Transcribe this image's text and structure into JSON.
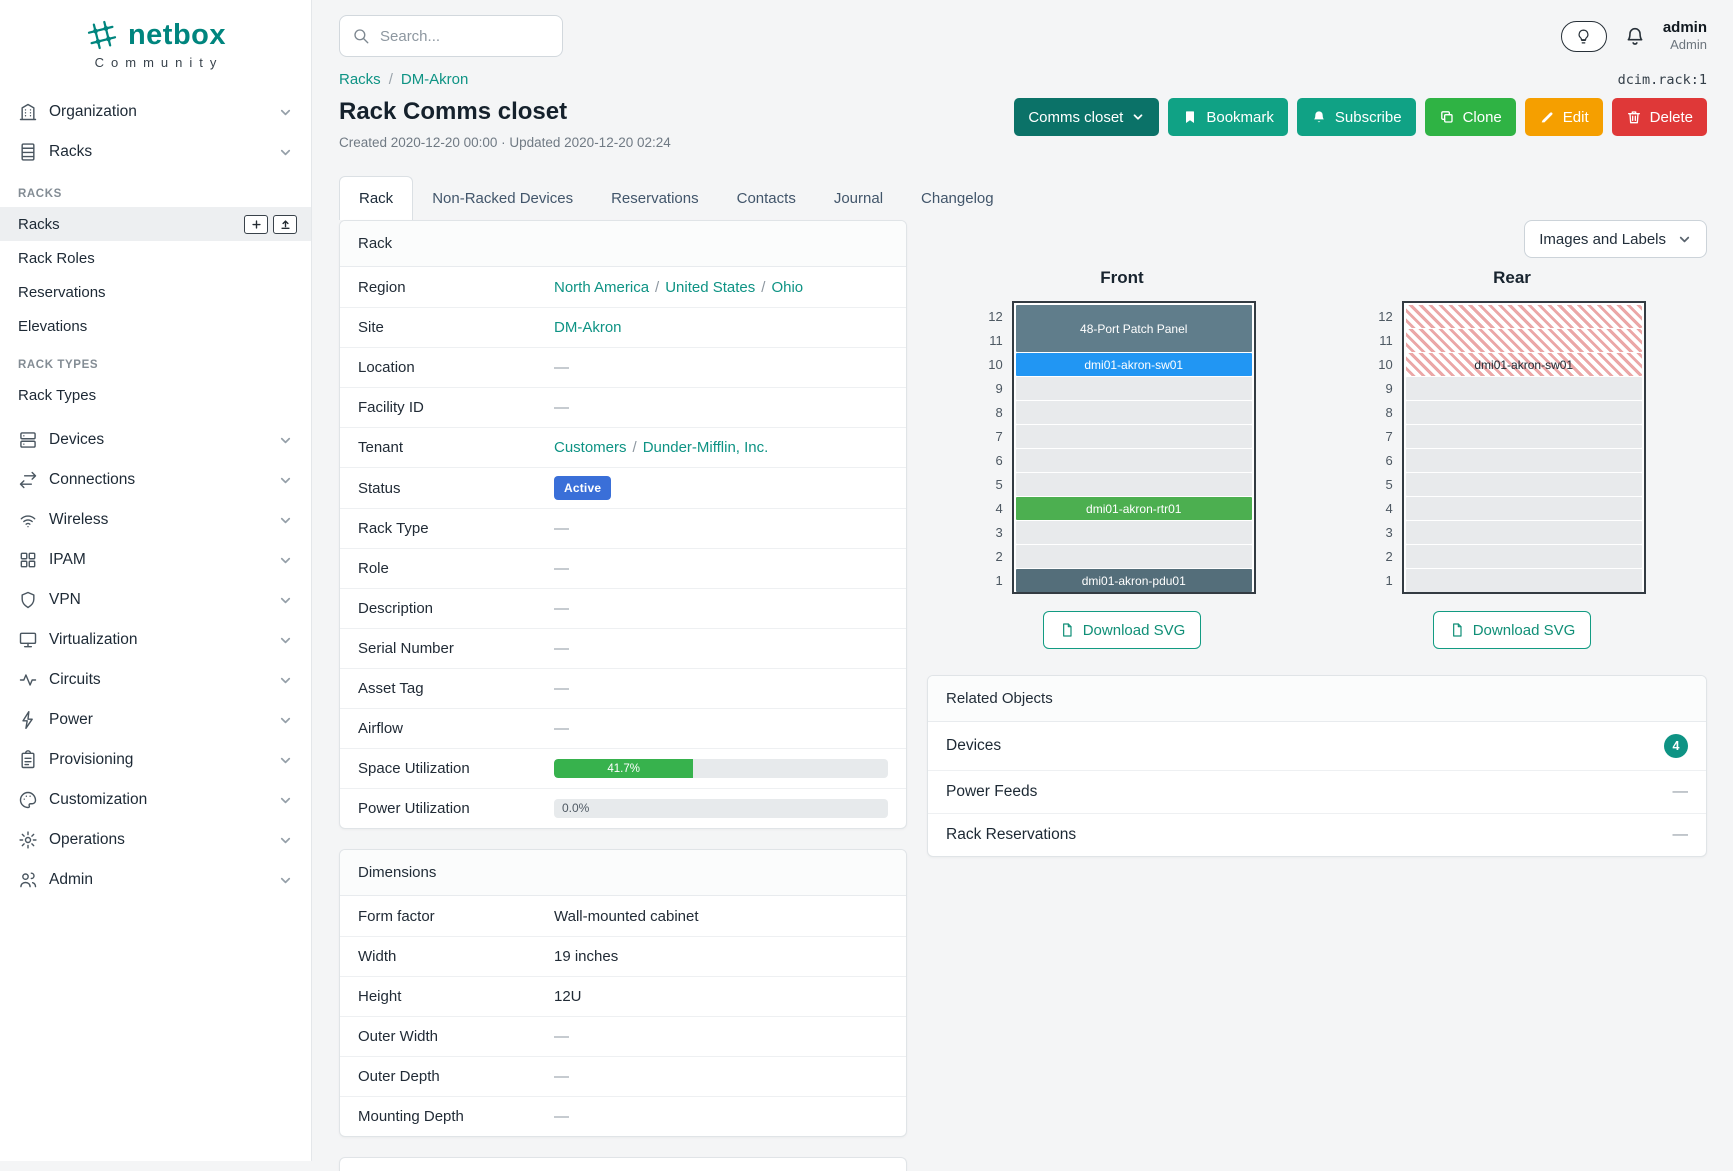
{
  "ui": {
    "sep": "/"
  },
  "topbar": {
    "search_placeholder": "Search...",
    "username": "admin",
    "role": "Admin"
  },
  "sidebar": {
    "logo": {
      "text": "netbox",
      "subtext": "Community"
    },
    "primary_top": [
      {
        "label": "Organization",
        "icon": "building-icon"
      },
      {
        "label": "Racks",
        "icon": "rack-icon"
      }
    ],
    "sections": [
      {
        "header": "RACKS",
        "items": [
          {
            "label": "Racks",
            "active": true
          },
          {
            "label": "Rack Roles"
          },
          {
            "label": "Reservations"
          },
          {
            "label": "Elevations"
          }
        ]
      },
      {
        "header": "RACK TYPES",
        "items": [
          {
            "label": "Rack Types"
          }
        ]
      }
    ],
    "primary_bottom": [
      {
        "label": "Devices",
        "icon": "devices-icon"
      },
      {
        "label": "Connections",
        "icon": "connections-icon"
      },
      {
        "label": "Wireless",
        "icon": "wifi-icon"
      },
      {
        "label": "IPAM",
        "icon": "grid-icon"
      },
      {
        "label": "VPN",
        "icon": "shield-icon"
      },
      {
        "label": "Virtualization",
        "icon": "monitor-icon"
      },
      {
        "label": "Circuits",
        "icon": "pulse-icon"
      },
      {
        "label": "Power",
        "icon": "bolt-icon"
      },
      {
        "label": "Provisioning",
        "icon": "clipboard-icon"
      },
      {
        "label": "Customization",
        "icon": "palette-icon"
      },
      {
        "label": "Operations",
        "icon": "gear-icon"
      },
      {
        "label": "Admin",
        "icon": "users-icon"
      }
    ]
  },
  "header": {
    "breadcrumb": [
      "Racks",
      "DM-Akron"
    ],
    "object_ref": "dcim.rack:1",
    "title": "Rack Comms closet",
    "created_updated": "Created 2020-12-20 00:00 · Updated 2020-12-20 02:24"
  },
  "actions": {
    "context_label": "Comms closet",
    "bookmark": "Bookmark",
    "subscribe": "Subscribe",
    "clone": "Clone",
    "edit": "Edit",
    "delete": "Delete"
  },
  "tabs": [
    {
      "label": "Rack",
      "active": true
    },
    {
      "label": "Non-Racked Devices"
    },
    {
      "label": "Reservations"
    },
    {
      "label": "Contacts"
    },
    {
      "label": "Journal"
    },
    {
      "label": "Changelog"
    }
  ],
  "rack_card": {
    "title": "Rack",
    "rows": [
      {
        "label": "Region",
        "parts": [
          "North America",
          "United States",
          "Ohio"
        ]
      },
      {
        "label": "Site",
        "value": "DM-Akron"
      },
      {
        "label": "Location",
        "value": "—"
      },
      {
        "label": "Facility ID",
        "value": "—"
      },
      {
        "label": "Tenant",
        "parts": [
          "Customers",
          "Dunder-Mifflin, Inc."
        ]
      },
      {
        "label": "Status",
        "value": "Active"
      },
      {
        "label": "Rack Type",
        "value": "—"
      },
      {
        "label": "Role",
        "value": "—"
      },
      {
        "label": "Description",
        "value": "—"
      },
      {
        "label": "Serial Number",
        "value": "—"
      },
      {
        "label": "Asset Tag",
        "value": "—"
      },
      {
        "label": "Airflow",
        "value": "—"
      },
      {
        "label": "Space Utilization",
        "percent": 41.7,
        "display": "41.7%"
      },
      {
        "label": "Power Utilization",
        "percent": 0,
        "display": "0.0%"
      }
    ]
  },
  "dimensions_card": {
    "title": "Dimensions",
    "rows": [
      {
        "label": "Form factor",
        "value": "Wall-mounted cabinet"
      },
      {
        "label": "Width",
        "value": "19 inches"
      },
      {
        "label": "Height",
        "value": "12U"
      },
      {
        "label": "Outer Width",
        "value": "—"
      },
      {
        "label": "Outer Depth",
        "value": "—"
      },
      {
        "label": "Mounting Depth",
        "value": "—"
      }
    ]
  },
  "elevation": {
    "display_select": "Images and Labels",
    "download_label": "Download SVG",
    "front_title": "Front",
    "rear_title": "Rear",
    "unit_numbers": [
      12,
      11,
      10,
      9,
      8,
      7,
      6,
      5,
      4,
      3,
      2,
      1
    ],
    "devices": {
      "patch_panel": "48-Port Patch Panel",
      "switch": "dmi01-akron-sw01",
      "router": "dmi01-akron-rtr01",
      "pdu": "dmi01-akron-pdu01",
      "switch_rear": "dmi01-akron-sw01"
    }
  },
  "related_card": {
    "title": "Related Objects",
    "rows": [
      {
        "label": "Devices",
        "badge": "4"
      },
      {
        "label": "Power Feeds",
        "value": "—"
      },
      {
        "label": "Rack Reservations",
        "value": "—"
      }
    ]
  },
  "colors": {
    "brand": "#00857e",
    "link": "#0e9384",
    "status_active": "#3a6fd8",
    "utilization_bar": "#37b24d",
    "device_patch_panel": "#607d8b",
    "device_switch": "#2196f3",
    "device_router": "#4caf50",
    "device_pdu": "#546e7a",
    "rear_hatch_stripe": "#eba7a7",
    "button_context": "#0b7268",
    "button_teal": "#10a285",
    "button_green": "#2fb344",
    "button_yellow": "#f59f00",
    "button_red": "#df3838",
    "related_badge": "#0e9384"
  }
}
